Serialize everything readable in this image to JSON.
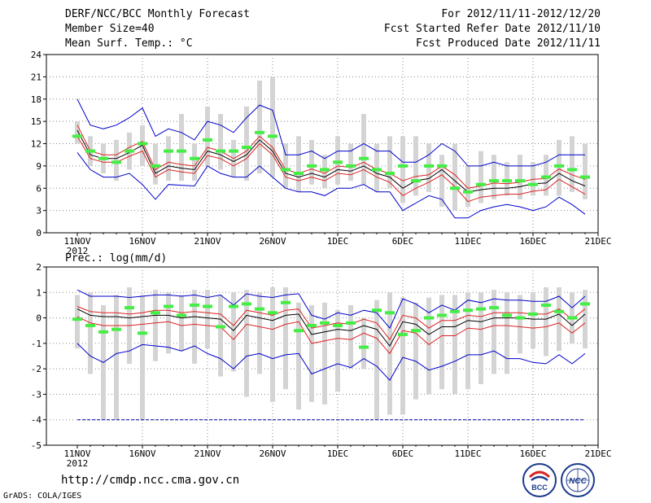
{
  "header": {
    "title": "DERF/NCC/BCC Monthly Forecast",
    "member_size": "Member Size=40",
    "variable": "Mean Surf. Temp.: °C",
    "forecast_period": "For 2012/11/11-2012/12/20",
    "start_date": "Fcst Started Refer Date 2012/11/10",
    "produced_date": "Fcst Produced Date 2012/11/11"
  },
  "footer": {
    "url": "http://cmdp.ncc.cma.gov.cn",
    "grads": "GrADS: COLA/IGES",
    "logo_bcc": "BCC",
    "logo_ncc": "NCC"
  },
  "colors": {
    "upper_envelope": "#0000cc",
    "lower_envelope": "#0000cc",
    "ensemble_mean": "#000000",
    "spread": "#dd2222",
    "observation_bar": "#44ee44",
    "member_range": "#d4d4d4",
    "grid": "#888888"
  },
  "chart_data": [
    {
      "type": "line",
      "title": "Mean Surf. Temp.: °C",
      "xlabel": "",
      "ylabel": "",
      "x_ticks": [
        "11NOV",
        "16NOV",
        "21NOV",
        "26NOV",
        "1DEC",
        "6DEC",
        "11DEC",
        "16DEC",
        "21DEC"
      ],
      "x_year": "2012",
      "ylim": [
        0,
        24
      ],
      "y_ticks": [
        0,
        3,
        6,
        9,
        12,
        15,
        18,
        21,
        24
      ],
      "days": 40,
      "series": [
        {
          "name": "upper",
          "values": [
            18.0,
            14.5,
            14.0,
            14.5,
            15.5,
            16.8,
            13.0,
            14.0,
            13.5,
            12.5,
            15.0,
            14.5,
            13.5,
            15.5,
            17.2,
            16.5,
            10.5,
            10.5,
            11.0,
            10.0,
            11.0,
            11.0,
            12.0,
            11.0,
            11.0,
            9.5,
            9.5,
            10.5,
            12.0,
            11.0,
            9.0,
            9.0,
            9.5,
            9.0,
            9.0,
            9.0,
            9.5,
            10.5,
            10.5,
            10.5
          ]
        },
        {
          "name": "spread_upper",
          "values": [
            14.5,
            11.0,
            10.5,
            10.5,
            11.5,
            12.3,
            8.5,
            9.5,
            9.2,
            9.0,
            11.5,
            11.0,
            10.0,
            11.0,
            13.0,
            11.5,
            8.5,
            8.0,
            8.6,
            8.0,
            9.0,
            8.8,
            9.5,
            8.5,
            8.0,
            7.0,
            7.6,
            7.8,
            9.0,
            7.8,
            6.0,
            6.3,
            6.7,
            6.6,
            6.8,
            7.2,
            7.3,
            8.6,
            7.8,
            7.2
          ]
        },
        {
          "name": "mean",
          "values": [
            13.8,
            10.5,
            10.0,
            10.0,
            10.8,
            11.8,
            8.0,
            9.0,
            8.7,
            8.5,
            11.0,
            10.5,
            9.6,
            10.5,
            12.5,
            11.0,
            8.0,
            7.5,
            8.0,
            7.5,
            8.5,
            8.3,
            9.0,
            8.0,
            7.5,
            6.0,
            7.0,
            7.3,
            8.5,
            7.0,
            5.5,
            5.8,
            6.0,
            6.0,
            6.2,
            6.6,
            6.7,
            8.0,
            7.0,
            6.3
          ]
        },
        {
          "name": "spread_lower",
          "values": [
            13.0,
            10.0,
            9.5,
            9.5,
            10.3,
            11.0,
            7.5,
            8.5,
            8.2,
            8.0,
            10.4,
            10.0,
            9.0,
            10.0,
            12.0,
            10.5,
            7.5,
            7.0,
            7.5,
            7.0,
            8.0,
            7.8,
            8.5,
            7.5,
            6.8,
            5.0,
            6.0,
            6.8,
            7.8,
            6.2,
            4.2,
            4.8,
            5.0,
            5.2,
            5.2,
            5.6,
            5.8,
            7.2,
            6.2,
            5.2
          ]
        },
        {
          "name": "lower",
          "values": [
            10.8,
            8.5,
            7.5,
            7.5,
            8.0,
            6.5,
            4.5,
            6.5,
            6.4,
            6.3,
            9.0,
            8.0,
            7.5,
            7.5,
            9.0,
            7.5,
            6.0,
            5.5,
            5.5,
            5.0,
            6.0,
            6.0,
            6.5,
            5.5,
            5.5,
            3.0,
            4.0,
            5.0,
            4.5,
            2.0,
            2.0,
            3.0,
            3.5,
            3.8,
            3.5,
            3.0,
            3.5,
            4.8,
            3.8,
            2.5
          ]
        },
        {
          "name": "observation",
          "values": [
            13.0,
            11.0,
            10.0,
            9.5,
            11.0,
            12.0,
            9.0,
            11.0,
            11.0,
            10.0,
            12.5,
            11.0,
            11.0,
            11.5,
            13.5,
            13.0,
            8.5,
            8.0,
            9.0,
            8.5,
            9.5,
            9.0,
            10.0,
            8.5,
            8.0,
            9.0,
            7.0,
            9.0,
            9.0,
            6.0,
            5.5,
            6.5,
            7.0,
            7.0,
            7.0,
            6.5,
            7.5,
            9.0,
            8.5,
            7.5
          ]
        },
        {
          "name": "member_max",
          "values": [
            15.0,
            13.0,
            12.0,
            12.5,
            13.5,
            14.5,
            12.0,
            13.0,
            16.0,
            12.0,
            17.0,
            16.0,
            12.5,
            17.0,
            20.5,
            21.0,
            12.0,
            13.0,
            12.5,
            10.5,
            13.0,
            12.0,
            16.0,
            12.0,
            13.0,
            13.0,
            13.0,
            12.0,
            10.5,
            12.0,
            9.0,
            11.0,
            10.5,
            9.5,
            10.5,
            9.5,
            10.5,
            12.5,
            13.0,
            12.0
          ]
        },
        {
          "name": "member_min",
          "values": [
            12.0,
            9.0,
            8.0,
            7.0,
            8.5,
            9.0,
            6.5,
            7.0,
            7.0,
            7.0,
            9.0,
            8.5,
            7.5,
            7.0,
            8.0,
            7.5,
            6.0,
            5.5,
            6.5,
            6.0,
            6.5,
            7.0,
            6.5,
            5.5,
            6.0,
            4.0,
            5.0,
            5.5,
            3.5,
            3.0,
            3.5,
            4.0,
            4.5,
            5.0,
            4.5,
            5.0,
            5.0,
            5.0,
            5.5,
            4.5
          ]
        }
      ]
    },
    {
      "type": "line",
      "title": "Prec.: log(mm/d)",
      "xlabel": "",
      "ylabel": "",
      "x_ticks": [
        "11NOV",
        "16NOV",
        "21NOV",
        "26NOV",
        "1DEC",
        "6DEC",
        "11DEC",
        "16DEC",
        "21DEC"
      ],
      "x_year": "2012",
      "ylim": [
        -5,
        2
      ],
      "y_ticks": [
        -5,
        -4,
        -3,
        -2,
        -1,
        0,
        1,
        2
      ],
      "days": 40,
      "series": [
        {
          "name": "upper",
          "values": [
            1.1,
            0.85,
            0.85,
            0.85,
            0.8,
            0.85,
            0.9,
            0.9,
            0.85,
            0.9,
            0.8,
            0.9,
            0.5,
            0.95,
            0.85,
            0.8,
            0.9,
            0.95,
            0.1,
            -0.05,
            0.2,
            0.1,
            0.3,
            0.2,
            -0.4,
            0.75,
            0.55,
            0.2,
            0.5,
            0.3,
            0.7,
            0.6,
            0.75,
            0.7,
            0.7,
            0.65,
            0.65,
            0.85,
            0.4,
            0.85
          ]
        },
        {
          "name": "spread_upper",
          "values": [
            0.45,
            0.25,
            0.2,
            0.2,
            0.15,
            0.2,
            0.3,
            0.3,
            0.2,
            0.25,
            0.2,
            0.15,
            -0.3,
            0.3,
            0.2,
            0.1,
            0.3,
            0.35,
            -0.4,
            -0.3,
            -0.2,
            -0.25,
            -0.05,
            -0.2,
            -0.85,
            0.1,
            0.0,
            -0.4,
            -0.1,
            -0.1,
            0.1,
            0.05,
            0.2,
            0.2,
            0.2,
            0.15,
            0.15,
            0.35,
            -0.05,
            0.35
          ]
        },
        {
          "name": "mean",
          "values": [
            0.35,
            0.1,
            0.05,
            0.05,
            0.0,
            0.05,
            0.1,
            0.1,
            0.0,
            0.05,
            0.0,
            -0.05,
            -0.5,
            0.1,
            0.0,
            -0.1,
            0.1,
            0.15,
            -0.65,
            -0.55,
            -0.45,
            -0.5,
            -0.3,
            -0.45,
            -1.1,
            -0.15,
            -0.25,
            -0.65,
            -0.35,
            -0.35,
            -0.1,
            -0.15,
            0.0,
            0.0,
            0.0,
            -0.05,
            -0.05,
            0.15,
            -0.3,
            0.15
          ]
        },
        {
          "name": "spread_lower",
          "values": [
            0.05,
            -0.2,
            -0.3,
            -0.3,
            -0.3,
            -0.25,
            -0.2,
            -0.15,
            -0.3,
            -0.25,
            -0.3,
            -0.35,
            -0.85,
            -0.25,
            -0.35,
            -0.45,
            -0.25,
            -0.15,
            -1.0,
            -0.9,
            -0.8,
            -0.85,
            -0.6,
            -0.8,
            -1.4,
            -0.5,
            -0.6,
            -1.05,
            -0.7,
            -0.7,
            -0.4,
            -0.45,
            -0.3,
            -0.3,
            -0.35,
            -0.4,
            -0.35,
            -0.2,
            -0.6,
            -0.2
          ]
        },
        {
          "name": "lower",
          "values": [
            -1.0,
            -1.5,
            -1.75,
            -1.4,
            -1.3,
            -1.05,
            -1.1,
            -1.15,
            -1.3,
            -1.1,
            -1.4,
            -1.6,
            -2.0,
            -1.5,
            -1.4,
            -1.6,
            -1.45,
            -1.4,
            -2.2,
            -2.0,
            -1.8,
            -1.95,
            -1.6,
            -1.9,
            -2.45,
            -1.55,
            -1.7,
            -2.05,
            -1.9,
            -1.7,
            -1.45,
            -1.45,
            -1.3,
            -1.6,
            -1.6,
            -1.75,
            -1.8,
            -1.45,
            -1.8,
            -1.4
          ]
        },
        {
          "name": "observation",
          "values": [
            -0.05,
            -0.3,
            -0.55,
            -0.45,
            0.4,
            -0.6,
            0.2,
            0.45,
            0.1,
            0.5,
            0.45,
            -0.35,
            0.45,
            0.55,
            0.35,
            0.2,
            0.6,
            -0.5,
            -0.3,
            -0.2,
            -0.3,
            -0.2,
            -1.15,
            0.3,
            0.2,
            -0.65,
            -0.5,
            0.0,
            0.1,
            0.25,
            0.3,
            0.35,
            0.4,
            0.1,
            0.0,
            0.15,
            0.5,
            0.25,
            0.0,
            0.55
          ]
        },
        {
          "name": "member_max",
          "values": [
            0.9,
            1.0,
            0.5,
            0.9,
            1.2,
            0.9,
            1.1,
            1.0,
            0.9,
            1.1,
            1.1,
            0.9,
            1.0,
            1.1,
            1.0,
            1.2,
            1.2,
            0.6,
            0.5,
            0.6,
            0.3,
            0.5,
            0.0,
            0.7,
            1.0,
            0.8,
            0.6,
            0.8,
            0.9,
            0.9,
            1.0,
            1.0,
            1.1,
            1.0,
            0.9,
            1.0,
            1.2,
            1.2,
            1.0,
            1.1
          ]
        },
        {
          "name": "member_min",
          "values": [
            -1.2,
            -2.2,
            -4.0,
            -4.0,
            -1.8,
            -4.0,
            -1.7,
            -1.4,
            -1.3,
            -1.8,
            -1.2,
            -2.3,
            -2.1,
            -3.1,
            -2.2,
            -3.3,
            -2.8,
            -3.6,
            -3.3,
            -3.4,
            -2.9,
            -2.0,
            -2.0,
            -4.0,
            -3.8,
            -3.8,
            -3.2,
            -3.0,
            -2.8,
            -3.0,
            -2.8,
            -2.6,
            -2.2,
            -2.2,
            -1.4,
            -1.2,
            -1.5,
            -1.3,
            -1.0,
            -1.2
          ]
        }
      ]
    }
  ]
}
